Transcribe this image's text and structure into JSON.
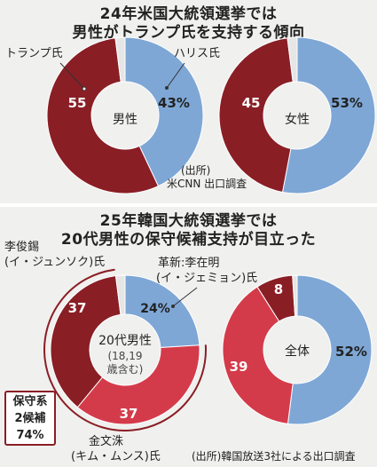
{
  "top": {
    "title_line1": "24年米国大統領選挙では",
    "title_line2": "男性がトランプ氏を支持する傾向",
    "label_trump": "トランプ氏",
    "label_harris": "ハリス氏",
    "source_line1": "(出所)",
    "source_line2": "米CNN 出口調査"
  },
  "bottom": {
    "title_line1": "25年韓国大統領選挙では",
    "title_line2": "20代男性の保守候補支持が目立った",
    "label_lee_jun_seok_1": "李俊錫",
    "label_lee_jun_seok_2": "(イ・ジュンソク)氏",
    "label_lee_jae_myung_1": "革新:李在明",
    "label_lee_jae_myung_2": "(イ・ジェミョン)氏",
    "label_kim_moon_soo_1": "金文洙",
    "label_kim_moon_soo_2": "(キム・ムンス)氏",
    "conservative_line1": "保守系",
    "conservative_line2": "2候補",
    "conservative_line3": "74%",
    "source": "(出所)韓国放送3社による出口調査"
  },
  "colors": {
    "trump_red": "#8a1e25",
    "harris_blue": "#7ea7d6",
    "lee_jun_seok": "#8a1e25",
    "kim_moon_soo": "#d43b4a",
    "lee_jae_myung": "#7ea7d6",
    "other": "#e6e6e6",
    "panel_bg": "#f0f0ee"
  },
  "chart_data": [
    {
      "type": "pie",
      "center_label": "男性",
      "categories": [
        "ハリス氏",
        "トランプ氏"
      ],
      "values": [
        43,
        55
      ],
      "value_labels": [
        "43%",
        "55"
      ]
    },
    {
      "type": "pie",
      "center_label": "女性",
      "categories": [
        "ハリス氏",
        "トランプ氏"
      ],
      "values": [
        53,
        45
      ],
      "value_labels": [
        "53%",
        "45"
      ]
    },
    {
      "type": "pie",
      "center_label": "20代男性",
      "center_sublabel1": "(18,19",
      "center_sublabel2": "歳含む)",
      "categories": [
        "李在明",
        "金文洙",
        "李俊錫"
      ],
      "values": [
        24,
        37,
        37
      ],
      "value_labels": [
        "24%",
        "37",
        "37"
      ]
    },
    {
      "type": "pie",
      "center_label": "全体",
      "categories": [
        "李在明",
        "金文洙",
        "李俊錫"
      ],
      "values": [
        52,
        39,
        8
      ],
      "value_labels": [
        "52%",
        "39",
        "8"
      ]
    }
  ]
}
